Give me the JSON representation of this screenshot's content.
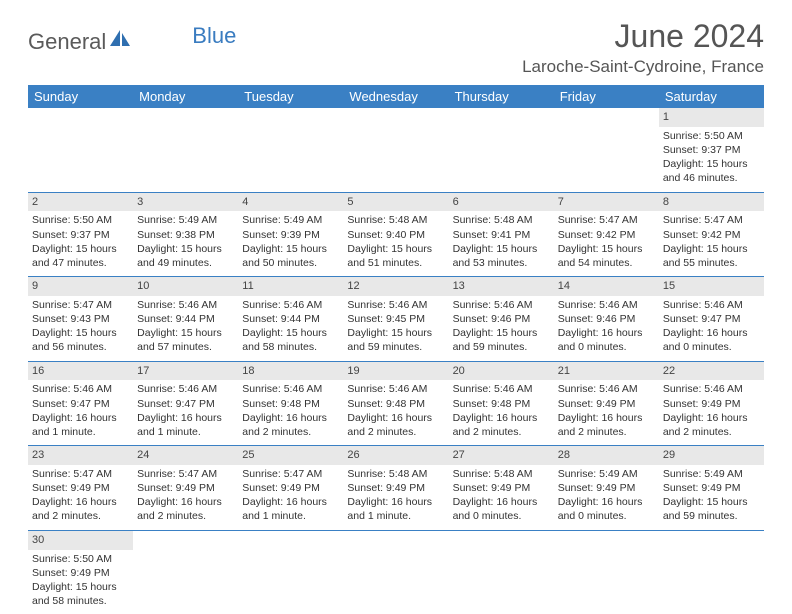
{
  "brand": {
    "part1": "General",
    "part2": "Blue"
  },
  "title": "June 2024",
  "location": "Laroche-Saint-Cydroine, France",
  "colors": {
    "header_bg": "#3a80c4",
    "logo_gray": "#5a5a5a",
    "logo_blue": "#3a7cc0",
    "daynum_bg": "#e8e8e8",
    "text": "#333333"
  },
  "day_headers": [
    "Sunday",
    "Monday",
    "Tuesday",
    "Wednesday",
    "Thursday",
    "Friday",
    "Saturday"
  ],
  "weeks": [
    [
      null,
      null,
      null,
      null,
      null,
      null,
      {
        "n": "1",
        "sr": "5:50 AM",
        "ss": "9:37 PM",
        "dl": "15 hours and 46 minutes."
      }
    ],
    [
      {
        "n": "2",
        "sr": "5:50 AM",
        "ss": "9:37 PM",
        "dl": "15 hours and 47 minutes."
      },
      {
        "n": "3",
        "sr": "5:49 AM",
        "ss": "9:38 PM",
        "dl": "15 hours and 49 minutes."
      },
      {
        "n": "4",
        "sr": "5:49 AM",
        "ss": "9:39 PM",
        "dl": "15 hours and 50 minutes."
      },
      {
        "n": "5",
        "sr": "5:48 AM",
        "ss": "9:40 PM",
        "dl": "15 hours and 51 minutes."
      },
      {
        "n": "6",
        "sr": "5:48 AM",
        "ss": "9:41 PM",
        "dl": "15 hours and 53 minutes."
      },
      {
        "n": "7",
        "sr": "5:47 AM",
        "ss": "9:42 PM",
        "dl": "15 hours and 54 minutes."
      },
      {
        "n": "8",
        "sr": "5:47 AM",
        "ss": "9:42 PM",
        "dl": "15 hours and 55 minutes."
      }
    ],
    [
      {
        "n": "9",
        "sr": "5:47 AM",
        "ss": "9:43 PM",
        "dl": "15 hours and 56 minutes."
      },
      {
        "n": "10",
        "sr": "5:46 AM",
        "ss": "9:44 PM",
        "dl": "15 hours and 57 minutes."
      },
      {
        "n": "11",
        "sr": "5:46 AM",
        "ss": "9:44 PM",
        "dl": "15 hours and 58 minutes."
      },
      {
        "n": "12",
        "sr": "5:46 AM",
        "ss": "9:45 PM",
        "dl": "15 hours and 59 minutes."
      },
      {
        "n": "13",
        "sr": "5:46 AM",
        "ss": "9:46 PM",
        "dl": "15 hours and 59 minutes."
      },
      {
        "n": "14",
        "sr": "5:46 AM",
        "ss": "9:46 PM",
        "dl": "16 hours and 0 minutes."
      },
      {
        "n": "15",
        "sr": "5:46 AM",
        "ss": "9:47 PM",
        "dl": "16 hours and 0 minutes."
      }
    ],
    [
      {
        "n": "16",
        "sr": "5:46 AM",
        "ss": "9:47 PM",
        "dl": "16 hours and 1 minute."
      },
      {
        "n": "17",
        "sr": "5:46 AM",
        "ss": "9:47 PM",
        "dl": "16 hours and 1 minute."
      },
      {
        "n": "18",
        "sr": "5:46 AM",
        "ss": "9:48 PM",
        "dl": "16 hours and 2 minutes."
      },
      {
        "n": "19",
        "sr": "5:46 AM",
        "ss": "9:48 PM",
        "dl": "16 hours and 2 minutes."
      },
      {
        "n": "20",
        "sr": "5:46 AM",
        "ss": "9:48 PM",
        "dl": "16 hours and 2 minutes."
      },
      {
        "n": "21",
        "sr": "5:46 AM",
        "ss": "9:49 PM",
        "dl": "16 hours and 2 minutes."
      },
      {
        "n": "22",
        "sr": "5:46 AM",
        "ss": "9:49 PM",
        "dl": "16 hours and 2 minutes."
      }
    ],
    [
      {
        "n": "23",
        "sr": "5:47 AM",
        "ss": "9:49 PM",
        "dl": "16 hours and 2 minutes."
      },
      {
        "n": "24",
        "sr": "5:47 AM",
        "ss": "9:49 PM",
        "dl": "16 hours and 2 minutes."
      },
      {
        "n": "25",
        "sr": "5:47 AM",
        "ss": "9:49 PM",
        "dl": "16 hours and 1 minute."
      },
      {
        "n": "26",
        "sr": "5:48 AM",
        "ss": "9:49 PM",
        "dl": "16 hours and 1 minute."
      },
      {
        "n": "27",
        "sr": "5:48 AM",
        "ss": "9:49 PM",
        "dl": "16 hours and 0 minutes."
      },
      {
        "n": "28",
        "sr": "5:49 AM",
        "ss": "9:49 PM",
        "dl": "16 hours and 0 minutes."
      },
      {
        "n": "29",
        "sr": "5:49 AM",
        "ss": "9:49 PM",
        "dl": "15 hours and 59 minutes."
      }
    ],
    [
      {
        "n": "30",
        "sr": "5:50 AM",
        "ss": "9:49 PM",
        "dl": "15 hours and 58 minutes."
      },
      null,
      null,
      null,
      null,
      null,
      null
    ]
  ],
  "labels": {
    "sunrise": "Sunrise:",
    "sunset": "Sunset:",
    "daylight": "Daylight:"
  }
}
